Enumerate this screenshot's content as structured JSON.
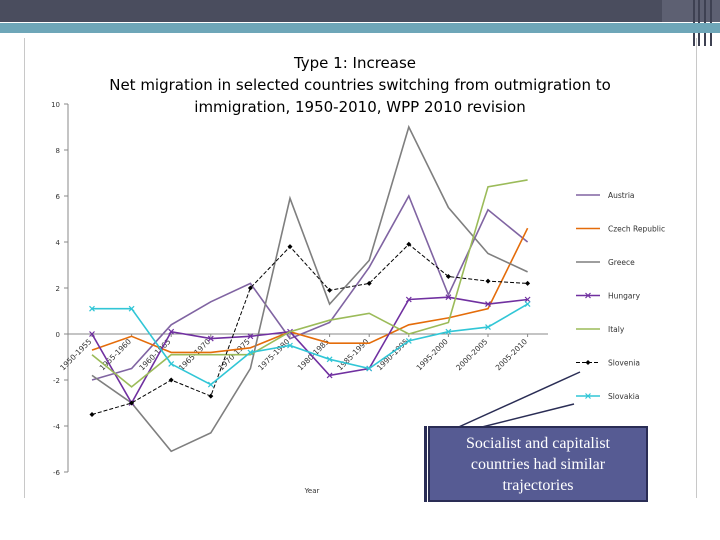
{
  "chart_data": {
    "type": "line",
    "title": "Type 1: Increase\nNet migration in selected countries switching from outmigration to immigration, 1950-2010, WPP 2010 revision",
    "title_lines": [
      "Type 1: Increase",
      "Net migration in selected countries switching from outmigration to",
      "immigration, 1950-2010, WPP 2010 revision"
    ],
    "xlabel": "Year",
    "ylabel": "",
    "categories": [
      "1950-1955",
      "1955-1960",
      "1960-1965",
      "1965-1970",
      "1970-1975",
      "1975-1980",
      "1980-1985",
      "1985-1990",
      "1990-1995",
      "1995-2000",
      "2000-2005",
      "2005-2010"
    ],
    "ylim": [
      -6,
      10
    ],
    "yticks": [
      "-6",
      "-4",
      "-2",
      "0",
      "2",
      "4",
      "6",
      "8",
      "10"
    ],
    "grid": false,
    "legend_position": "right",
    "series": [
      {
        "name": "Austria",
        "color": "#8064a2",
        "marker": "none",
        "values": [
          -2.0,
          -1.5,
          0.4,
          1.4,
          2.2,
          -0.2,
          0.5,
          2.9,
          6.0,
          1.7,
          5.4,
          4.0
        ]
      },
      {
        "name": "Czech Republic",
        "color": "#e46c0a",
        "marker": "none",
        "values": [
          -0.7,
          -0.1,
          -0.8,
          -0.8,
          -0.6,
          0.1,
          -0.4,
          -0.4,
          0.4,
          0.7,
          1.1,
          4.6
        ]
      },
      {
        "name": "Greece",
        "color": "#7f7f7f",
        "marker": "none",
        "values": [
          -1.8,
          -3.0,
          -5.1,
          -4.3,
          -1.5,
          5.9,
          1.3,
          3.2,
          9.0,
          5.5,
          3.5,
          2.7
        ]
      },
      {
        "name": "Hungary",
        "color": "#7030a0",
        "marker": "x",
        "values": [
          0.0,
          -3.0,
          0.1,
          -0.2,
          -0.1,
          0.1,
          -1.8,
          -1.5,
          1.5,
          1.6,
          1.3,
          1.5
        ]
      },
      {
        "name": "Italy",
        "color": "#9bbb59",
        "marker": "none",
        "values": [
          -0.9,
          -2.3,
          -0.9,
          -0.9,
          -0.9,
          0.1,
          0.6,
          0.9,
          0.0,
          0.5,
          6.4,
          6.7
        ]
      },
      {
        "name": "Slovenia",
        "color": "#000000",
        "marker": "diamond",
        "dash": true,
        "values": [
          -3.5,
          -3.0,
          -2.0,
          -2.7,
          2.0,
          3.8,
          1.9,
          2.2,
          3.9,
          2.5,
          2.3,
          2.2
        ]
      },
      {
        "name": "Slovakia",
        "color": "#31c6d6",
        "marker": "x",
        "values": [
          1.1,
          1.1,
          -1.3,
          -2.2,
          -0.8,
          -0.5,
          -1.1,
          -1.5,
          -0.3,
          0.1,
          0.3,
          1.3
        ]
      }
    ]
  },
  "callout": {
    "text": "Socialist and capitalist countries had similar trajectories"
  }
}
